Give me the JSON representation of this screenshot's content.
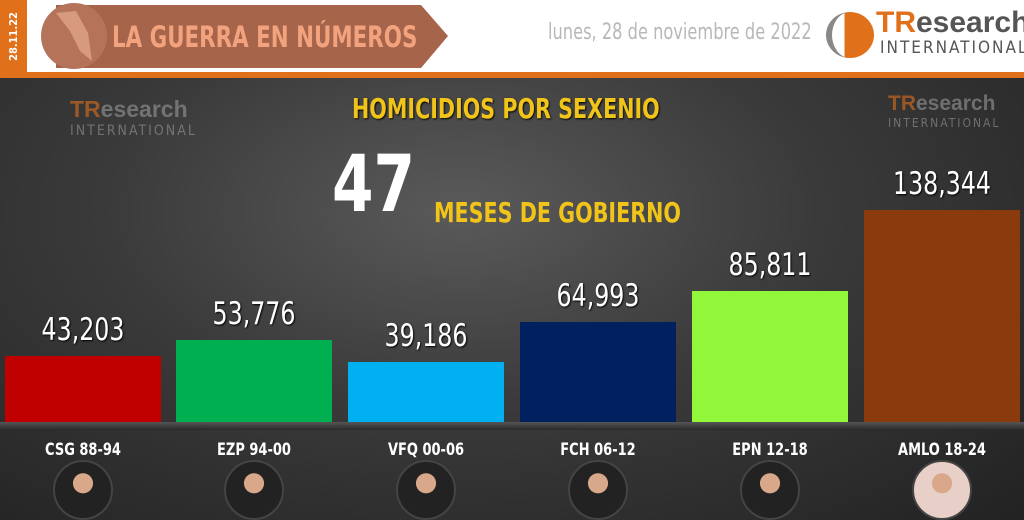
{
  "header": {
    "date_short": "28.11.22",
    "banner_title": "LA GUERRA EN NÚMEROS",
    "date_long": "lunes, 28 de noviembre de 2022",
    "logo_tr": "TR",
    "logo_research": "esearch",
    "logo_intl": "INTERNATIONAL"
  },
  "colors": {
    "accent": "#e0701a",
    "title_yellow": "#f0c419"
  },
  "chart_data": {
    "type": "bar",
    "title": "HOMICIDIOS POR SEXENIO",
    "annotation_number": "47",
    "annotation_text": "MESES DE GOBIERNO",
    "categories": [
      "CSG 88-94",
      "EZP 94-00",
      "VFQ 00-06",
      "FCH 06-12",
      "EPN 12-18",
      "AMLO 18-24"
    ],
    "values": [
      43203,
      53776,
      39186,
      64993,
      85811,
      138344
    ],
    "value_labels": [
      "43,203",
      "53,776",
      "39,186",
      "64,993",
      "85,811",
      "138,344"
    ],
    "bar_colors": [
      "#c00000",
      "#00b050",
      "#00b0f0",
      "#002060",
      "#92f73a",
      "#8b3a0e"
    ],
    "ylim": [
      0,
      138344
    ]
  }
}
